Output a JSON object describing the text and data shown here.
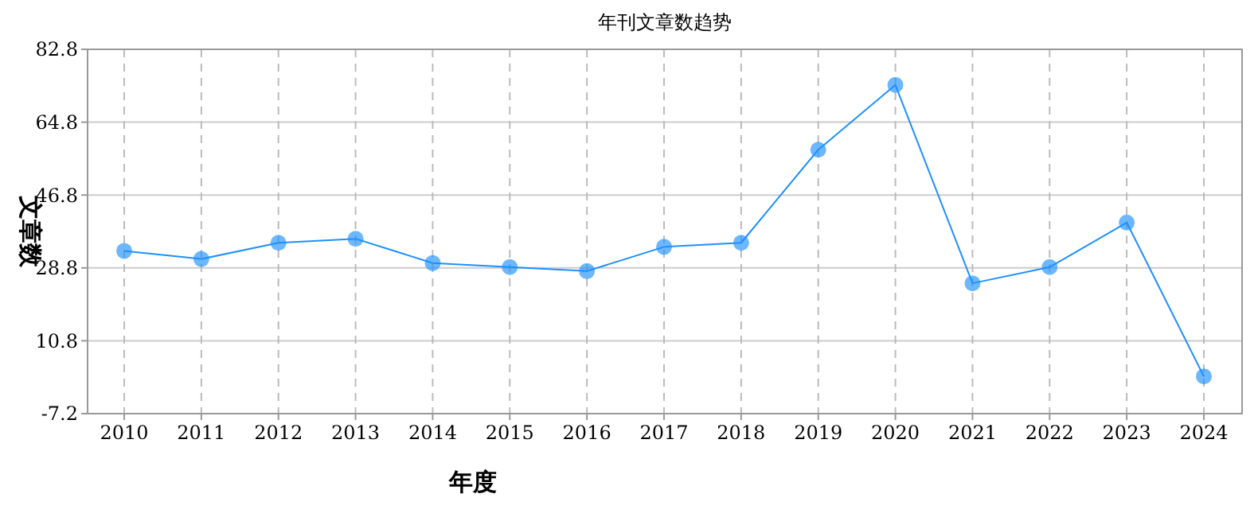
{
  "chart_data": {
    "type": "line",
    "title": "年刊文章数趋势",
    "xlabel": "年度",
    "ylabel": "文章数",
    "categories": [
      "2010",
      "2011",
      "2012",
      "2013",
      "2014",
      "2015",
      "2016",
      "2017",
      "2018",
      "2019",
      "2020",
      "2021",
      "2022",
      "2023",
      "2024"
    ],
    "series": [
      {
        "color": "#1e90ff",
        "values": [
          33,
          31,
          35,
          36,
          30,
          29,
          28,
          34,
          35,
          58,
          74,
          25,
          29,
          40,
          2
        ]
      }
    ],
    "ylim": [
      -7.2,
      82.8
    ],
    "yticks": [
      -7.2,
      10.8,
      28.8,
      46.8,
      64.8,
      82.8
    ],
    "grid": true,
    "marker": "circle",
    "line_style": "solid"
  }
}
